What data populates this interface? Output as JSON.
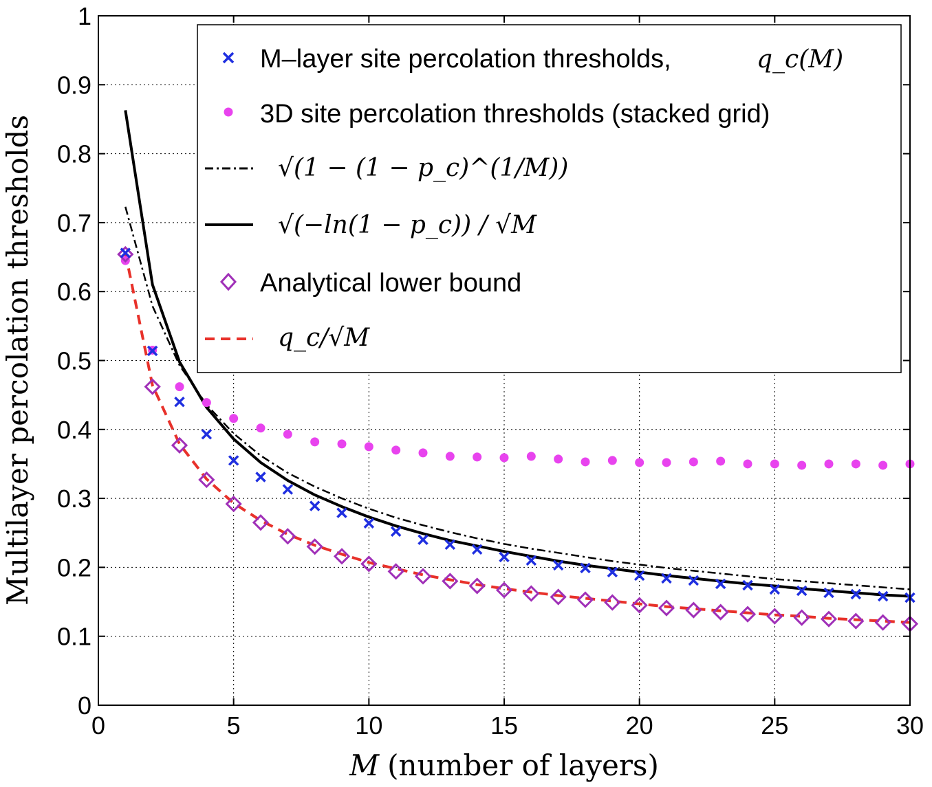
{
  "chart_data": {
    "type": "line",
    "xlabel": "M (number of layers)",
    "xlabel_var": "M",
    "xlabel_rest": "(number of layers)",
    "ylabel": "Multilayer percolation thresholds",
    "xlim": [
      0,
      30
    ],
    "ylim": [
      0,
      1
    ],
    "xticks": [
      "0",
      "5",
      "10",
      "15",
      "20",
      "25",
      "30"
    ],
    "yticks": [
      "0",
      "0.1",
      "0.2",
      "0.3",
      "0.4",
      "0.5",
      "0.6",
      "0.7",
      "0.8",
      "0.9",
      "1"
    ],
    "grid": true,
    "legend_position": "top-right",
    "legend": [
      {
        "key": "mlayer",
        "label": "M–layer site percolation thresholds,",
        "math": "q_c(M)"
      },
      {
        "key": "grid3d",
        "label": "3D site percolation thresholds (stacked grid)"
      },
      {
        "key": "root",
        "math": "√(1 − (1 − p_c)^(1/M))"
      },
      {
        "key": "ln",
        "math": "√(−ln(1 − p_c)) / √M"
      },
      {
        "key": "bound",
        "label": "Analytical lower bound"
      },
      {
        "key": "qc",
        "math": "q_c/√M"
      }
    ],
    "x": [
      1,
      2,
      3,
      4,
      5,
      6,
      7,
      8,
      9,
      10,
      11,
      12,
      13,
      14,
      15,
      16,
      17,
      18,
      19,
      20,
      21,
      22,
      23,
      24,
      25,
      26,
      27,
      28,
      29,
      30
    ],
    "series": [
      {
        "name": "M-layer site percolation thresholds, q_c(M)",
        "key": "mlayer",
        "style": "marker-x",
        "color": "#1f2fe0",
        "values": [
          0.656,
          0.514,
          0.44,
          0.393,
          0.355,
          0.331,
          0.313,
          0.289,
          0.279,
          0.264,
          0.252,
          0.24,
          0.233,
          0.226,
          0.215,
          0.21,
          0.203,
          0.199,
          0.193,
          0.188,
          0.184,
          0.181,
          0.176,
          0.174,
          0.168,
          0.166,
          0.163,
          0.161,
          0.158,
          0.156
        ]
      },
      {
        "name": "3D site percolation thresholds (stacked grid)",
        "key": "grid3d",
        "style": "marker-dot",
        "color": "#e843ee",
        "values": [
          0.645,
          0.515,
          0.462,
          0.439,
          0.416,
          0.402,
          0.393,
          0.382,
          0.379,
          0.375,
          0.37,
          0.366,
          0.361,
          0.36,
          0.359,
          0.361,
          0.357,
          0.353,
          0.355,
          0.352,
          0.352,
          0.353,
          0.354,
          0.35,
          0.35,
          0.348,
          0.35,
          0.35,
          0.348,
          0.35
        ]
      },
      {
        "name": "sqrt(1-(1-p_c)^(1/M))",
        "key": "root",
        "style": "dashdot",
        "color": "#000000",
        "values": [
          0.723,
          0.579,
          0.493,
          0.436,
          0.394,
          0.362,
          0.337,
          0.317,
          0.3,
          0.285,
          0.272,
          0.261,
          0.251,
          0.242,
          0.234,
          0.227,
          0.221,
          0.215,
          0.209,
          0.204,
          0.199,
          0.195,
          0.191,
          0.187,
          0.183,
          0.18,
          0.177,
          0.174,
          0.171,
          0.168
        ]
      },
      {
        "name": "sqrt(-ln(1-p_c))/sqrt(M)",
        "key": "ln",
        "style": "solid",
        "color": "#000000",
        "values": [
          0.863,
          0.61,
          0.498,
          0.432,
          0.386,
          0.352,
          0.326,
          0.305,
          0.288,
          0.273,
          0.26,
          0.249,
          0.239,
          0.231,
          0.223,
          0.216,
          0.209,
          0.203,
          0.198,
          0.193,
          0.188,
          0.184,
          0.18,
          0.176,
          0.173,
          0.169,
          0.166,
          0.163,
          0.16,
          0.158
        ]
      },
      {
        "name": "Analytical lower bound",
        "key": "bound",
        "style": "marker-diamond",
        "color": "#a030b8",
        "values": [
          0.654,
          0.462,
          0.377,
          0.327,
          0.292,
          0.265,
          0.245,
          0.23,
          0.216,
          0.205,
          0.194,
          0.187,
          0.18,
          0.173,
          0.167,
          0.162,
          0.157,
          0.153,
          0.149,
          0.145,
          0.141,
          0.138,
          0.135,
          0.132,
          0.129,
          0.127,
          0.125,
          0.122,
          0.12,
          0.118
        ]
      },
      {
        "name": "q_c/sqrt(M)",
        "key": "qc",
        "style": "dashed",
        "color": "#e8312a",
        "values": [
          0.656,
          0.464,
          0.379,
          0.328,
          0.293,
          0.268,
          0.248,
          0.232,
          0.219,
          0.207,
          0.198,
          0.189,
          0.182,
          0.175,
          0.169,
          0.164,
          0.159,
          0.155,
          0.151,
          0.147,
          0.143,
          0.14,
          0.137,
          0.134,
          0.131,
          0.129,
          0.126,
          0.124,
          0.122,
          0.12
        ]
      }
    ]
  }
}
